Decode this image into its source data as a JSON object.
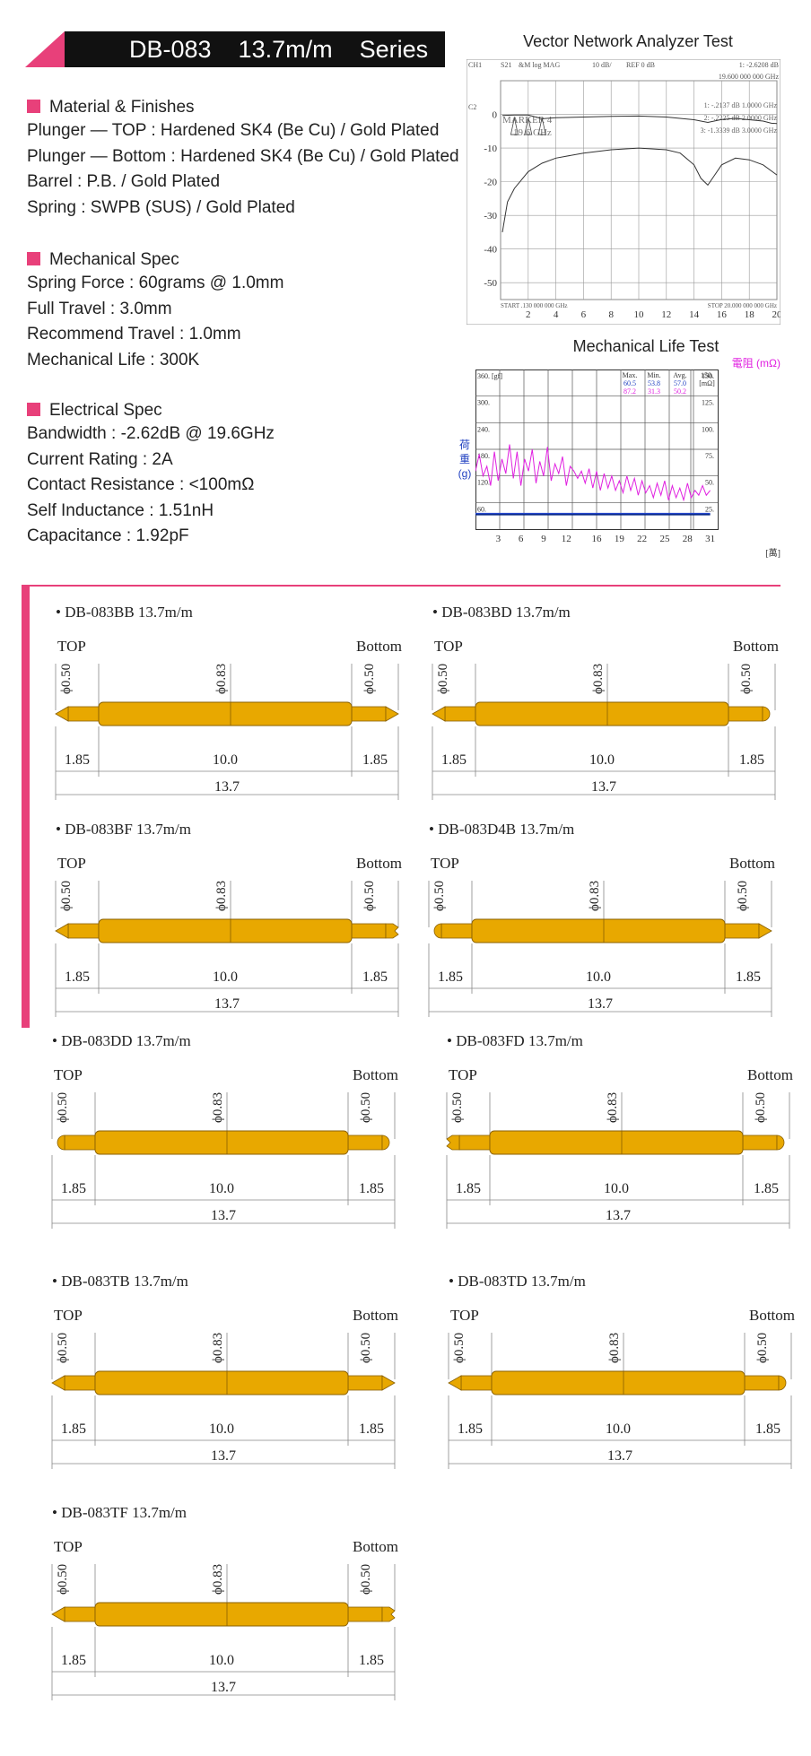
{
  "header": {
    "title": "DB-083    13.7m/m    Series"
  },
  "material": {
    "heading": "Material & Finishes",
    "lines": [
      "Plunger — TOP : Hardened SK4 (Be Cu) / Gold Plated",
      "Plunger — Bottom : Hardened SK4 (Be Cu) / Gold Plated",
      "Barrel : P.B. / Gold Plated",
      "Spring : SWPB (SUS) / Gold Plated"
    ]
  },
  "mechanical": {
    "heading": "Mechanical Spec",
    "lines": [
      "Spring Force : 60grams @ 1.0mm",
      "Full Travel : 3.0mm",
      "Recommend Travel : 1.0mm",
      "Mechanical Life : 300K"
    ]
  },
  "electrical": {
    "heading": "Electrical Spec",
    "lines": [
      "Bandwidth : -2.62dB @ 19.6GHz",
      "Current Rating : 2A",
      "Contact Resistance : <100mΩ",
      "Self Inductance : 1.51nH",
      "Capacitance : 1.92pF"
    ]
  },
  "vna": {
    "title": "Vector Network Analyzer Test",
    "hdr": [
      "CH1",
      "S21",
      "&M log MAG",
      "10 dB/",
      "REF 0 dB",
      "1: -2.6208 dB",
      "19.600 000 000 GHz"
    ],
    "marker_text": [
      "MARKER 4",
      "19.6 GHz"
    ],
    "markers": [
      "1: -.2137 dB  1.0000 GHz",
      "2: -.2225 dB  2.0000 GHz",
      "3: -1.3339 dB  3.0000 GHz"
    ],
    "c2": "C2",
    "start": "START  .130 000 000 GHz",
    "stop": "STOP 20.000 000 000 GHz"
  },
  "mech_life": {
    "title": "Mechanical Life Test",
    "right_axis_title": "電阻 (mΩ)",
    "left_axis_title": [
      "荷",
      "重",
      "(g)"
    ],
    "x_unit": "[萬]",
    "table": {
      "headers": [
        "Max.",
        "Min.",
        "Avg.",
        "150."
      ],
      "unit": "[mΩ]",
      "rows": [
        [
          "60.5",
          "53.8",
          "57.0"
        ],
        [
          "87.2",
          "31.3",
          "50.2"
        ]
      ]
    }
  },
  "chart_data": [
    {
      "type": "line",
      "title": "Vector Network Analyzer Test",
      "x_ticks": [
        "2",
        "4",
        "6",
        "8",
        "10",
        "12",
        "14",
        "16",
        "18",
        "20"
      ],
      "y_ticks": [
        "0",
        "-10",
        "-20",
        "-30",
        "-40",
        "-50"
      ],
      "xlim": [
        0,
        20
      ],
      "ylim": [
        -55,
        10
      ],
      "series": [
        {
          "x": [
            0.13,
            1,
            2,
            3,
            4,
            6,
            8,
            10,
            12,
            13,
            14,
            15,
            16,
            17,
            18,
            19,
            19.6,
            20
          ],
          "y": [
            -0.3,
            -0.2,
            -0.2,
            -1.3,
            -1.0,
            -0.8,
            -0.6,
            -0.5,
            -0.8,
            -1.2,
            -1.6,
            -2.4,
            -1.5,
            -1.2,
            -1.6,
            -2.0,
            -2.62,
            -2.7
          ]
        },
        {
          "x": [
            0.13,
            0.5,
            1,
            2,
            3,
            4,
            6,
            8,
            10,
            12,
            13,
            14,
            14.5,
            15,
            15.5,
            16,
            17,
            18,
            19,
            20
          ],
          "y": [
            -35,
            -26,
            -22,
            -17,
            -14.5,
            -13,
            -11.5,
            -10.5,
            -10,
            -10.5,
            -11.5,
            -15,
            -19,
            -21,
            -18,
            -15,
            -13,
            -13.5,
            -15,
            -18
          ]
        }
      ]
    },
    {
      "type": "line",
      "title": "Mechanical Life Test",
      "x_ticks": [
        "3",
        "6",
        "9",
        "12",
        "16",
        "19",
        "22",
        "25",
        "28",
        "31"
      ],
      "y_left_ticks": [
        "360. [gf]",
        "300.",
        "240.",
        "180.",
        "120.",
        "60."
      ],
      "y_right_ticks": [
        "150.",
        "125.",
        "100.",
        "75.",
        "50.",
        "25."
      ],
      "xlim": [
        0,
        32
      ],
      "ylim": [
        30,
        360
      ],
      "series": [
        {
          "x": [
            0,
            0.5,
            1,
            1.5,
            2,
            2.5,
            3,
            3.5,
            4,
            4.5,
            5,
            5.5,
            6,
            6.5,
            7,
            7.5,
            8,
            8.5,
            9,
            9.5,
            10,
            10.5,
            11,
            11.5,
            12,
            12.5,
            13,
            13.5,
            14,
            14.5,
            15,
            15.5,
            16,
            16.5,
            17,
            17.5,
            18,
            18.5,
            19,
            19.5,
            20,
            20.5,
            21,
            21.5,
            22,
            22.5,
            23,
            23.5,
            24,
            24.5,
            25,
            25.5,
            26,
            26.5,
            27,
            27.5,
            28,
            28.5,
            29,
            29.5,
            30,
            30.5,
            31
          ],
          "y": [
            150,
            185,
            140,
            160,
            120,
            190,
            130,
            175,
            145,
            205,
            135,
            190,
            120,
            175,
            150,
            195,
            125,
            170,
            140,
            200,
            130,
            165,
            145,
            180,
            120,
            160,
            150,
            135,
            150,
            125,
            155,
            115,
            150,
            110,
            145,
            115,
            140,
            110,
            130,
            105,
            140,
            110,
            135,
            100,
            130,
            105,
            120,
            95,
            125,
            100,
            130,
            90,
            120,
            95,
            115,
            90,
            125,
            95,
            110,
            100,
            120,
            100,
            110
          ]
        },
        {
          "x": [
            0,
            31
          ],
          "y": [
            62,
            62
          ]
        },
        {
          "x": [
            0,
            31
          ],
          "y": [
            60,
            60
          ]
        }
      ]
    }
  ],
  "variants": [
    {
      "name": "• DB-083BB 13.7m/m",
      "top": "TOP",
      "bottom": "Bottom",
      "d_top": "ϕ0.50",
      "d_mid": "ϕ0.83",
      "d_bot": "ϕ0.50",
      "l_left": "1.85",
      "l_mid": "10.0",
      "l_right": "1.85",
      "total": "13.7"
    },
    {
      "name": "• DB-083BD 13.7m/m",
      "top": "TOP",
      "bottom": "Bottom",
      "d_top": "ϕ0.50",
      "d_mid": "ϕ0.83",
      "d_bot": "ϕ0.50",
      "l_left": "1.85",
      "l_mid": "10.0",
      "l_right": "1.85",
      "total": "13.7"
    },
    {
      "name": "• DB-083BF 13.7m/m",
      "top": "TOP",
      "bottom": "Bottom",
      "d_top": "ϕ0.50",
      "d_mid": "ϕ0.83",
      "d_bot": "ϕ0.50",
      "l_left": "1.85",
      "l_mid": "10.0",
      "l_right": "1.85",
      "total": "13.7"
    },
    {
      "name": "• DB-083D4B 13.7m/m",
      "top": "TOP",
      "bottom": "Bottom",
      "d_top": "ϕ0.50",
      "d_mid": "ϕ0.83",
      "d_bot": "ϕ0.50",
      "l_left": "1.85",
      "l_mid": "10.0",
      "l_right": "1.85",
      "total": "13.7"
    },
    {
      "name": "• DB-083DD 13.7m/m",
      "top": "TOP",
      "bottom": "Bottom",
      "d_top": "ϕ0.50",
      "d_mid": "ϕ0.83",
      "d_bot": "ϕ0.50",
      "l_left": "1.85",
      "l_mid": "10.0",
      "l_right": "1.85",
      "total": "13.7"
    },
    {
      "name": "• DB-083FD 13.7m/m",
      "top": "TOP",
      "bottom": "Bottom",
      "d_top": "ϕ0.50",
      "d_mid": "ϕ0.83",
      "d_bot": "ϕ0.50",
      "l_left": "1.85",
      "l_mid": "10.0",
      "l_right": "1.85",
      "total": "13.7"
    },
    {
      "name": "• DB-083TB 13.7m/m",
      "top": "TOP",
      "bottom": "Bottom",
      "d_top": "ϕ0.50",
      "d_mid": "ϕ0.83",
      "d_bot": "ϕ0.50",
      "l_left": "1.85",
      "l_mid": "10.0",
      "l_right": "1.85",
      "total": "13.7"
    },
    {
      "name": "• DB-083TD 13.7m/m",
      "top": "TOP",
      "bottom": "Bottom",
      "d_top": "ϕ0.50",
      "d_mid": "ϕ0.83",
      "d_bot": "ϕ0.50",
      "l_left": "1.85",
      "l_mid": "10.0",
      "l_right": "1.85",
      "total": "13.7"
    },
    {
      "name": "• DB-083TF 13.7m/m",
      "top": "TOP",
      "bottom": "Bottom",
      "d_top": "ϕ0.50",
      "d_mid": "ϕ0.83",
      "d_bot": "ϕ0.50",
      "l_left": "1.85",
      "l_mid": "10.0",
      "l_right": "1.85",
      "total": "13.7"
    }
  ],
  "colors": {
    "accent": "#e8407a",
    "gold": "#e8a800",
    "magenta": "#e020e0",
    "blue": "#1f3fc0"
  }
}
